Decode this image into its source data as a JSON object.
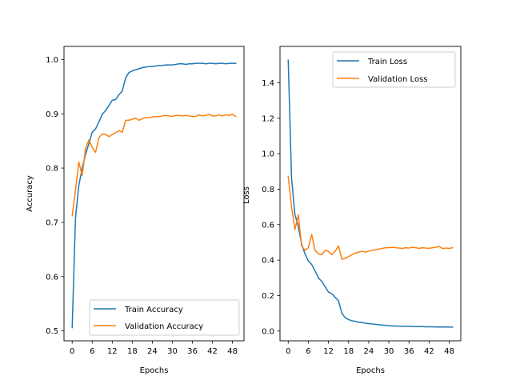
{
  "chart_data": [
    {
      "type": "line",
      "xlabel": "Epochs",
      "ylabel": "Accuracy",
      "xlim": [
        -2.45,
        51.45
      ],
      "ylim": [
        0.4818,
        1.0241
      ],
      "xticks": [
        0,
        6,
        12,
        18,
        24,
        30,
        36,
        42,
        48
      ],
      "xtick_labels": [
        "0",
        "6",
        "12",
        "18",
        "24",
        "30",
        "36",
        "42",
        "48"
      ],
      "yticks": [
        0.5,
        0.6,
        0.7,
        0.8,
        0.9,
        1.0
      ],
      "ytick_labels": [
        "0.5",
        "0.6",
        "0.7",
        "0.8",
        "0.9",
        "1.0"
      ],
      "grid": false,
      "legend_position": "lower-right",
      "x": [
        0,
        1,
        2,
        3,
        4,
        5,
        6,
        7,
        8,
        9,
        10,
        11,
        12,
        13,
        14,
        15,
        16,
        17,
        18,
        19,
        20,
        21,
        22,
        23,
        24,
        25,
        26,
        27,
        28,
        29,
        30,
        31,
        32,
        33,
        34,
        35,
        36,
        37,
        38,
        39,
        40,
        41,
        42,
        43,
        44,
        45,
        46,
        47,
        48,
        49
      ],
      "series": [
        {
          "name": "Train Accuracy",
          "color": "#1f77b4",
          "values": [
            0.506,
            0.709,
            0.768,
            0.8,
            0.825,
            0.845,
            0.866,
            0.872,
            0.885,
            0.899,
            0.906,
            0.915,
            0.925,
            0.926,
            0.935,
            0.942,
            0.966,
            0.976,
            0.979,
            0.981,
            0.983,
            0.985,
            0.986,
            0.987,
            0.987,
            0.988,
            0.989,
            0.989,
            0.99,
            0.99,
            0.99,
            0.991,
            0.992,
            0.992,
            0.991,
            0.992,
            0.992,
            0.993,
            0.993,
            0.993,
            0.992,
            0.993,
            0.993,
            0.992,
            0.993,
            0.993,
            0.992,
            0.993,
            0.993,
            0.993
          ]
        },
        {
          "name": "Validation Accuracy",
          "color": "#ff7f0e",
          "values": [
            0.712,
            0.76,
            0.811,
            0.786,
            0.836,
            0.852,
            0.838,
            0.829,
            0.856,
            0.863,
            0.862,
            0.858,
            0.862,
            0.865,
            0.869,
            0.866,
            0.888,
            0.888,
            0.89,
            0.892,
            0.888,
            0.891,
            0.893,
            0.893,
            0.894,
            0.895,
            0.895,
            0.896,
            0.897,
            0.896,
            0.895,
            0.897,
            0.897,
            0.896,
            0.897,
            0.896,
            0.895,
            0.895,
            0.898,
            0.896,
            0.897,
            0.899,
            0.896,
            0.896,
            0.898,
            0.896,
            0.898,
            0.897,
            0.899,
            0.895
          ]
        }
      ]
    },
    {
      "type": "line",
      "xlabel": "Epochs",
      "ylabel": "Loss",
      "xlim": [
        -2.45,
        51.45
      ],
      "ylim": [
        -0.055,
        1.605
      ],
      "xticks": [
        0,
        6,
        12,
        18,
        24,
        30,
        36,
        42,
        48
      ],
      "xtick_labels": [
        "0",
        "6",
        "12",
        "18",
        "24",
        "30",
        "36",
        "42",
        "48"
      ],
      "yticks": [
        0.0,
        0.2,
        0.4,
        0.6,
        0.8,
        1.0,
        1.2,
        1.4
      ],
      "ytick_labels": [
        "0.0",
        "0.2",
        "0.4",
        "0.6",
        "0.8",
        "1.0",
        "1.2",
        "1.4"
      ],
      "grid": false,
      "legend_position": "top-right",
      "x": [
        0,
        1,
        2,
        3,
        4,
        5,
        6,
        7,
        8,
        9,
        10,
        11,
        12,
        13,
        14,
        15,
        16,
        17,
        18,
        19,
        20,
        21,
        22,
        23,
        24,
        25,
        26,
        27,
        28,
        29,
        30,
        31,
        32,
        33,
        34,
        35,
        36,
        37,
        38,
        39,
        40,
        41,
        42,
        43,
        44,
        45,
        46,
        47,
        48,
        49
      ],
      "series": [
        {
          "name": "Train Loss",
          "color": "#1f77b4",
          "values": [
            1.527,
            0.86,
            0.657,
            0.59,
            0.49,
            0.435,
            0.395,
            0.375,
            0.34,
            0.3,
            0.28,
            0.25,
            0.22,
            0.21,
            0.19,
            0.17,
            0.1,
            0.075,
            0.065,
            0.058,
            0.055,
            0.05,
            0.048,
            0.044,
            0.042,
            0.04,
            0.038,
            0.036,
            0.034,
            0.032,
            0.03,
            0.029,
            0.028,
            0.028,
            0.027,
            0.027,
            0.027,
            0.026,
            0.025,
            0.025,
            0.025,
            0.024,
            0.024,
            0.024,
            0.023,
            0.023,
            0.023,
            0.023,
            0.022,
            0.022
          ]
        },
        {
          "name": "Validation Loss",
          "color": "#ff7f0e",
          "values": [
            0.872,
            0.7,
            0.572,
            0.655,
            0.48,
            0.455,
            0.47,
            0.545,
            0.455,
            0.435,
            0.43,
            0.455,
            0.45,
            0.43,
            0.45,
            0.48,
            0.405,
            0.41,
            0.42,
            0.43,
            0.44,
            0.445,
            0.45,
            0.445,
            0.45,
            0.455,
            0.458,
            0.462,
            0.466,
            0.47,
            0.47,
            0.472,
            0.47,
            0.468,
            0.466,
            0.47,
            0.468,
            0.472,
            0.47,
            0.466,
            0.47,
            0.468,
            0.466,
            0.47,
            0.472,
            0.478,
            0.465,
            0.468,
            0.466,
            0.47
          ]
        }
      ]
    }
  ]
}
